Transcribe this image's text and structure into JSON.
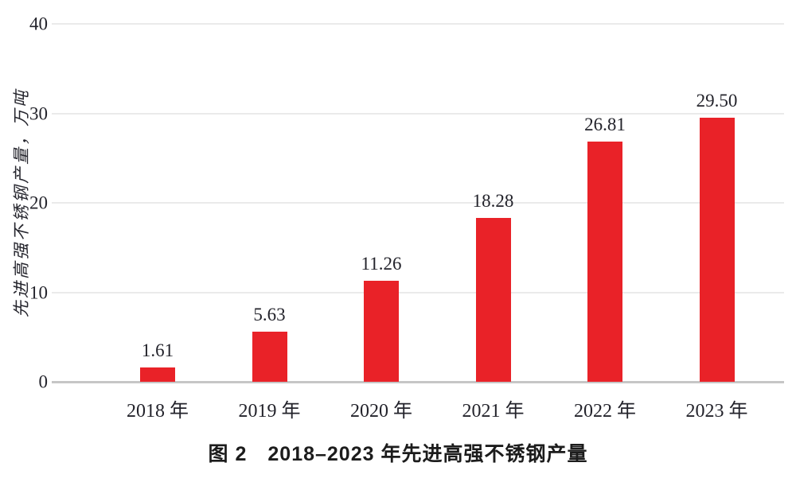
{
  "figure": {
    "caption": "图 2　2018–2023 年先进高强不锈钢产量"
  },
  "chart_data": {
    "type": "bar",
    "title": "图 2 2018–2023 年先进高强不锈钢产量",
    "categories": [
      "2018 年",
      "2019 年",
      "2020 年",
      "2021 年",
      "2022 年",
      "2023 年"
    ],
    "values": [
      1.61,
      5.63,
      11.26,
      18.28,
      26.81,
      29.5
    ],
    "value_labels": [
      "1.61",
      "5.63",
      "11.26",
      "18.28",
      "26.81",
      "29.50"
    ],
    "xlabel": "",
    "ylabel": "先进高强不锈钢产量，万吨",
    "ylim": [
      0,
      40
    ],
    "yticks": [
      0,
      10,
      20,
      30,
      40
    ],
    "grid": true,
    "legend": false,
    "colors": {
      "bar": "#e92228",
      "gridline": "#eaeaea",
      "axis_line": "#c6c6c6",
      "text": "#23232b",
      "caption_text": "#1c1c1c"
    }
  }
}
